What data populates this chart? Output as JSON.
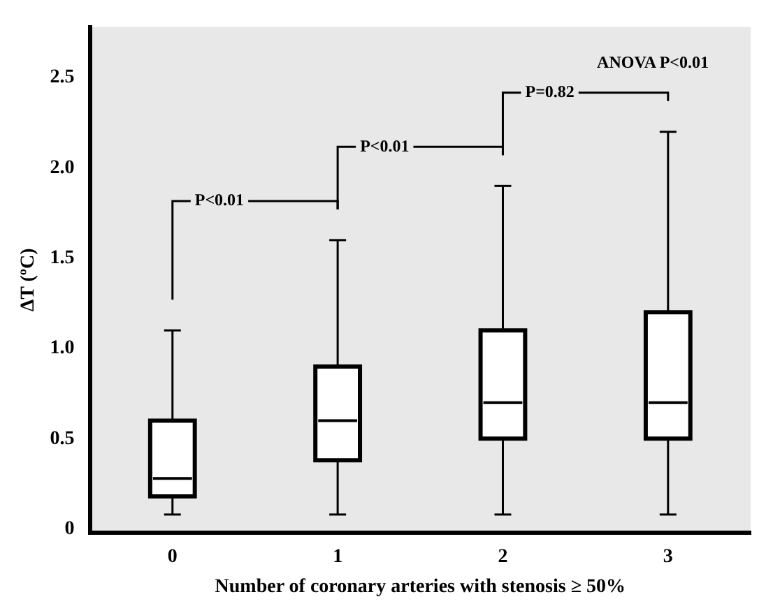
{
  "chart_data": {
    "type": "box",
    "categories": [
      "0",
      "1",
      "2",
      "3"
    ],
    "boxes": [
      {
        "low": 0.08,
        "q1": 0.18,
        "median": 0.28,
        "q3": 0.6,
        "high": 1.1
      },
      {
        "low": 0.08,
        "q1": 0.38,
        "median": 0.6,
        "q3": 0.9,
        "high": 1.6
      },
      {
        "low": 0.08,
        "q1": 0.5,
        "median": 0.7,
        "q3": 1.1,
        "high": 1.9
      },
      {
        "low": 0.08,
        "q1": 0.5,
        "median": 0.7,
        "q3": 1.2,
        "high": 2.2
      }
    ],
    "xlabel": "Number of coronary arteries with stenosis ≥ 50%",
    "ylabel": "ΔT (ºC)",
    "ylim": [
      -0.02,
      2.78
    ],
    "yticks": [
      0,
      0.5,
      {
        "value": 1,
        "label": "1.0"
      },
      1.5,
      {
        "value": 2,
        "label": "2.0"
      },
      2.5
    ],
    "annotations": [
      "ANOVA P<0.01",
      "P<0.01",
      "P<0.01",
      "P=0.82"
    ],
    "grid": false,
    "legend": false
  }
}
